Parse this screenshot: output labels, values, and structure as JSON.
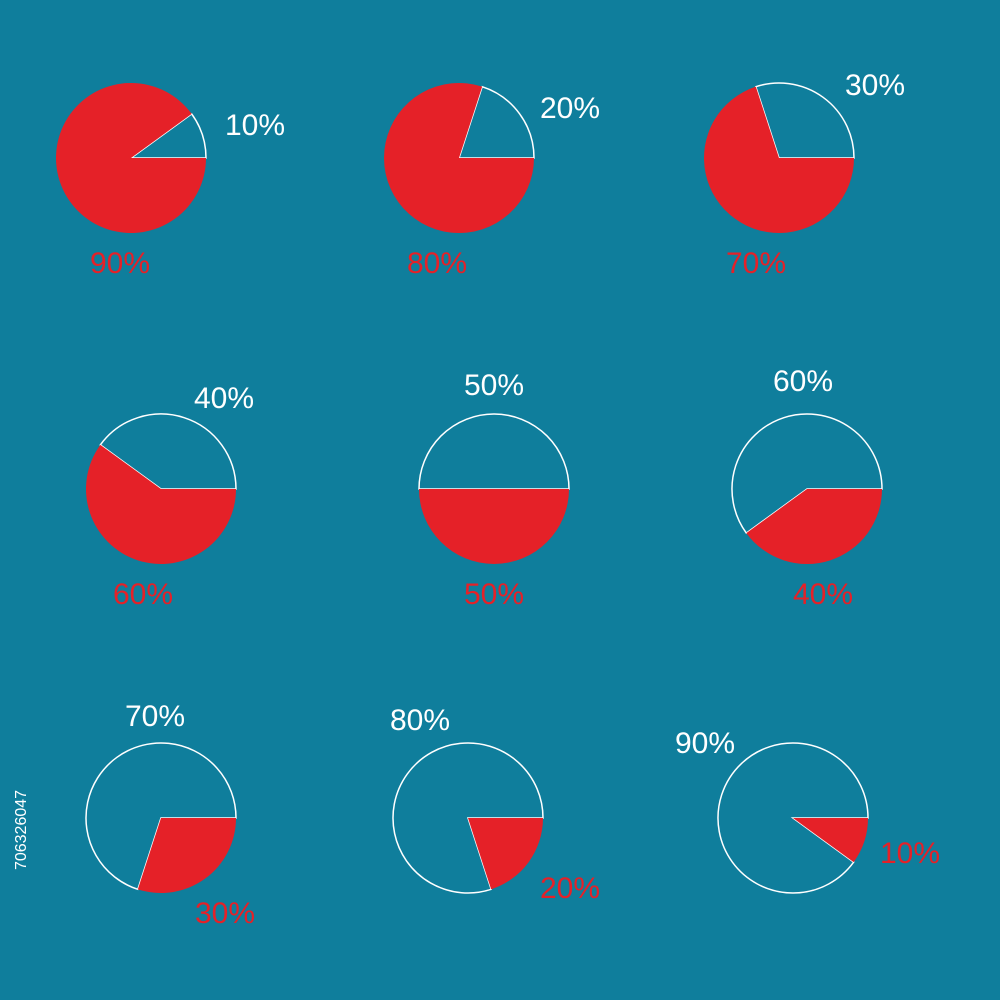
{
  "chart_data": [
    {
      "type": "pie",
      "values": [
        10,
        90
      ],
      "value_labels": [
        "10%",
        "90%"
      ],
      "colors": [
        "#0f7e9c",
        "#e52128"
      ],
      "stroke": "#ffffff"
    },
    {
      "type": "pie",
      "values": [
        20,
        80
      ],
      "value_labels": [
        "20%",
        "80%"
      ],
      "colors": [
        "#0f7e9c",
        "#e52128"
      ],
      "stroke": "#ffffff"
    },
    {
      "type": "pie",
      "values": [
        30,
        70
      ],
      "value_labels": [
        "30%",
        "70%"
      ],
      "colors": [
        "#0f7e9c",
        "#e52128"
      ],
      "stroke": "#ffffff"
    },
    {
      "type": "pie",
      "values": [
        40,
        60
      ],
      "value_labels": [
        "40%",
        "60%"
      ],
      "colors": [
        "#0f7e9c",
        "#e52128"
      ],
      "stroke": "#ffffff"
    },
    {
      "type": "pie",
      "values": [
        50,
        50
      ],
      "value_labels": [
        "50%",
        "50%"
      ],
      "colors": [
        "#0f7e9c",
        "#e52128"
      ],
      "stroke": "#ffffff"
    },
    {
      "type": "pie",
      "values": [
        60,
        40
      ],
      "value_labels": [
        "60%",
        "40%"
      ],
      "colors": [
        "#0f7e9c",
        "#e52128"
      ],
      "stroke": "#ffffff"
    },
    {
      "type": "pie",
      "values": [
        70,
        30
      ],
      "value_labels": [
        "70%",
        "30%"
      ],
      "colors": [
        "#0f7e9c",
        "#e52128"
      ],
      "stroke": "#ffffff"
    },
    {
      "type": "pie",
      "values": [
        80,
        20
      ],
      "value_labels": [
        "80%",
        "20%"
      ],
      "colors": [
        "#0f7e9c",
        "#e52128"
      ],
      "stroke": "#ffffff"
    },
    {
      "type": "pie",
      "values": [
        90,
        10
      ],
      "value_labels": [
        "90%",
        "10%"
      ],
      "colors": [
        "#0f7e9c",
        "#e52128"
      ],
      "stroke": "#ffffff"
    }
  ],
  "image_id": "706326047"
}
